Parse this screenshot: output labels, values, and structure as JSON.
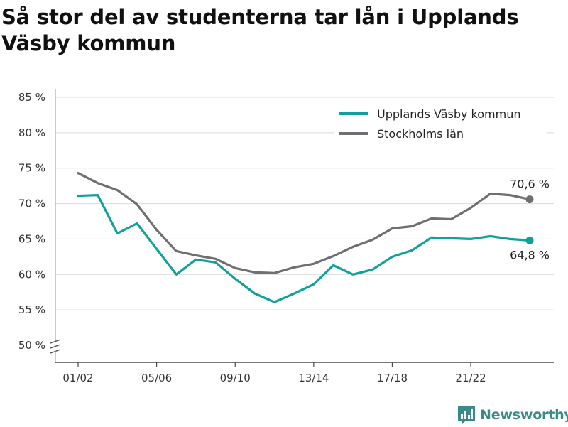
{
  "colors": {
    "vasby": "#12a19a",
    "stockholm": "#6e6e73",
    "grid": "#d9d9d9",
    "axis": "#4a4a4a",
    "brand": "#3a8a8a"
  },
  "brand": {
    "name": "Newsworthy",
    "icon": "bar-chart-logo-icon"
  },
  "chart_data": {
    "type": "line",
    "title": "Så stor del av studenterna tar lån i Upplands Väsby kommun",
    "x_tick_labels": [
      "01/02",
      "05/06",
      "09/10",
      "13/14",
      "17/18",
      "21/22"
    ],
    "y_tick_labels": [
      "50 %",
      "55 %",
      "60 %",
      "65 %",
      "70 %",
      "75 %",
      "80 %",
      "85 %"
    ],
    "ylim": [
      50,
      85
    ],
    "y_axis_broken": true,
    "grid": true,
    "legend_position": "top-right",
    "x": [
      "01/02",
      "02/03",
      "03/04",
      "04/05",
      "05/06",
      "06/07",
      "07/08",
      "08/09",
      "09/10",
      "10/11",
      "11/12",
      "12/13",
      "13/14",
      "14/15",
      "15/16",
      "16/17",
      "17/18",
      "18/19",
      "19/20",
      "20/21",
      "21/22",
      "22/23",
      "23/24",
      "24/25"
    ],
    "series": [
      {
        "name": "Upplands Väsby kommun",
        "color_key": "vasby",
        "values": [
          71.1,
          71.2,
          65.8,
          67.2,
          63.6,
          60.0,
          62.1,
          61.7,
          59.4,
          57.3,
          56.1,
          57.3,
          58.6,
          61.3,
          60.0,
          60.7,
          62.5,
          63.4,
          65.2,
          65.1,
          65.0,
          65.4,
          65.0,
          64.8
        ],
        "end_label": "64,8 %"
      },
      {
        "name": "Stockholms län",
        "color_key": "stockholm",
        "values": [
          74.3,
          72.9,
          71.9,
          69.9,
          66.3,
          63.3,
          62.7,
          62.2,
          60.9,
          60.3,
          60.2,
          61.0,
          61.5,
          62.6,
          63.9,
          64.9,
          66.5,
          66.8,
          67.9,
          67.8,
          69.4,
          71.4,
          71.2,
          70.6
        ],
        "end_label": "70,6 %"
      }
    ]
  }
}
